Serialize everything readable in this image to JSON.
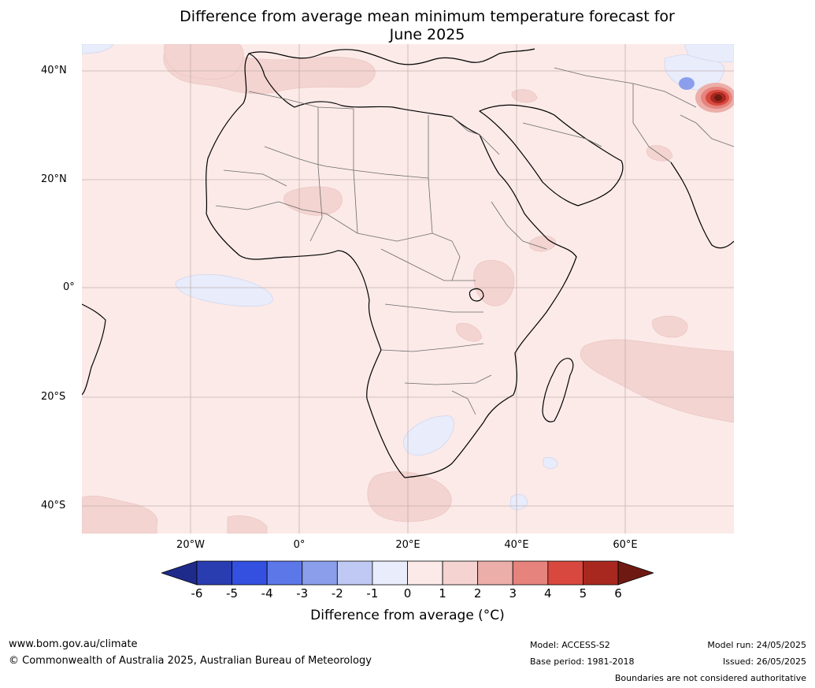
{
  "title_line1": "Difference from average mean minimum temperature forecast for",
  "title_line2": "June 2025",
  "map": {
    "lat_labels": [
      "40°N",
      "20°N",
      "0°",
      "20°S",
      "40°S"
    ],
    "lon_labels": [
      "20°W",
      "0°",
      "20°E",
      "40°E",
      "60°E"
    ],
    "ocean_color": "#fbeae8",
    "land_color": "#fbeae8",
    "warm_patch_color": "#f3d4d1",
    "cool_patch_color": "#e8ecfb",
    "hotspot_color": "#a83025"
  },
  "colorbar": {
    "ticks": [
      "-6",
      "-5",
      "-4",
      "-3",
      "-2",
      "-1",
      "0",
      "1",
      "2",
      "3",
      "4",
      "5",
      "6"
    ],
    "colors": [
      "#1f2b8a",
      "#2a3db0",
      "#3450e0",
      "#5c78e8",
      "#8a9eec",
      "#c0c9f3",
      "#e9edfb",
      "#fbeae8",
      "#f4d3d0",
      "#ecaea9",
      "#e6837c",
      "#d9483e",
      "#a8281f",
      "#6e1a12"
    ],
    "label": "Difference from average (°C)"
  },
  "footer": {
    "website": "www.bom.gov.au/climate",
    "copyright": "© Commonwealth of Australia 2025, Australian Bureau of Meteorology",
    "model": "Model: ACCESS-S2",
    "base_period": "Base period: 1981-2018",
    "model_run": "Model run: 24/05/2025",
    "issued": "Issued: 26/05/2025",
    "disclaimer": "Boundaries are not considered authoritative"
  }
}
